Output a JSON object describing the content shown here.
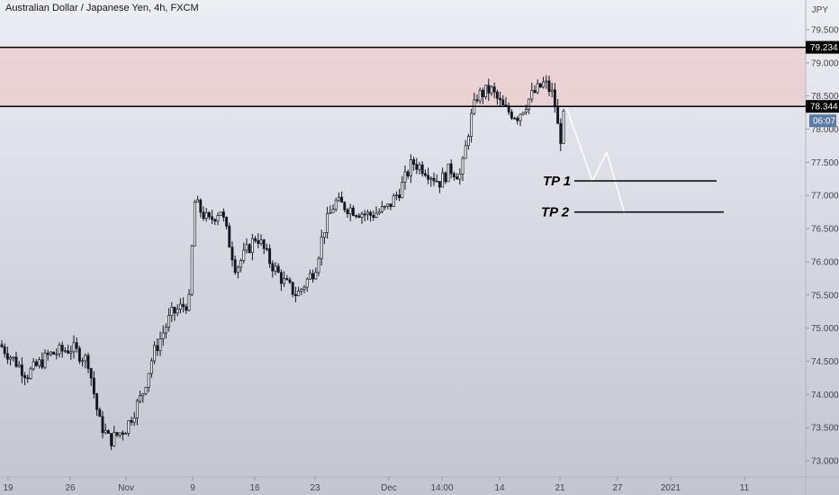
{
  "header": {
    "title": "Australian Dollar / Japanese Yen, 4h, FXCM",
    "unit": "JPY"
  },
  "colors": {
    "zone_fill": "#f0b8b8",
    "line": "#000000",
    "candle": "#131722",
    "projection": "#ffffff",
    "countdown_bg": "#5b7ba6"
  },
  "chart_data": {
    "type": "candlestick",
    "title": "Australian Dollar / Japanese Yen, 4h, FXCM",
    "ylabel": "JPY",
    "ylim": [
      72.9,
      80.5
    ],
    "y_ticks": [
      "73.000",
      "73.500",
      "74.000",
      "74.500",
      "75.000",
      "75.500",
      "76.000",
      "76.500",
      "77.000",
      "77.500",
      "78.000",
      "78.500",
      "79.000",
      "79.500"
    ],
    "x_ticks": [
      "19",
      "26",
      "Nov",
      "9",
      "16",
      "23",
      "Dec",
      "14:00",
      "14",
      "21",
      "27",
      "2021",
      "11"
    ],
    "price_path": [
      [
        0,
        74.75
      ],
      [
        30,
        74.3
      ],
      [
        55,
        74.6
      ],
      [
        80,
        74.7
      ],
      [
        98,
        74.5
      ],
      [
        110,
        73.6
      ],
      [
        122,
        73.3
      ],
      [
        140,
        73.5
      ],
      [
        158,
        74.0
      ],
      [
        170,
        74.6
      ],
      [
        190,
        75.2
      ],
      [
        210,
        75.4
      ],
      [
        216,
        76.9
      ],
      [
        232,
        76.6
      ],
      [
        245,
        76.8
      ],
      [
        262,
        75.9
      ],
      [
        285,
        76.4
      ],
      [
        300,
        76.0
      ],
      [
        315,
        75.7
      ],
      [
        330,
        75.5
      ],
      [
        350,
        75.9
      ],
      [
        360,
        76.5
      ],
      [
        372,
        76.9
      ],
      [
        390,
        76.8
      ],
      [
        410,
        76.7
      ],
      [
        430,
        76.8
      ],
      [
        445,
        77.1
      ],
      [
        458,
        77.5
      ],
      [
        472,
        77.4
      ],
      [
        488,
        77.2
      ],
      [
        500,
        77.4
      ],
      [
        512,
        77.3
      ],
      [
        522,
        78.1
      ],
      [
        530,
        78.5
      ],
      [
        545,
        78.6
      ],
      [
        560,
        78.3
      ],
      [
        575,
        78.2
      ],
      [
        590,
        78.5
      ],
      [
        605,
        78.7
      ],
      [
        615,
        78.5
      ],
      [
        622,
        77.8
      ],
      [
        628,
        78.35
      ]
    ],
    "resistance_zone": [
      78.344,
      79.234
    ],
    "levels": [
      {
        "value": 79.234,
        "label": "79.234"
      },
      {
        "value": 78.344,
        "label": "78.344"
      }
    ],
    "current_price": 78.344,
    "countdown": "06:07",
    "projection": [
      [
        630,
        78.3
      ],
      [
        658,
        77.22
      ],
      [
        674,
        77.65
      ],
      [
        694,
        76.72
      ]
    ],
    "targets": [
      {
        "name": "TP 1",
        "value": 77.22
      },
      {
        "name": "TP 2",
        "value": 76.75
      }
    ]
  }
}
